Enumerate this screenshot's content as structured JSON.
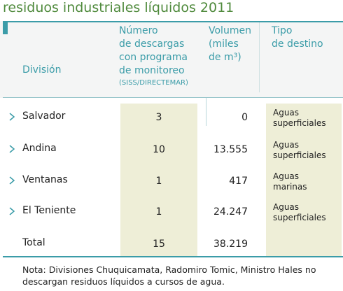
{
  "header": {
    "title": "residuos industriales líquidos 2011"
  },
  "table": {
    "columns": [
      {
        "lines": [
          "División"
        ]
      },
      {
        "lines": [
          "Número",
          "de descargas",
          "con programa",
          "de monitoreo"
        ],
        "sub": "(SISS/DIRECTEMAR)"
      },
      {
        "lines": [
          "Volumen",
          "(miles",
          "de m³)"
        ]
      },
      {
        "lines": [
          "Tipo",
          "de destino"
        ]
      }
    ],
    "rows": [
      [
        "Salvador",
        "3",
        "0",
        [
          "Aguas",
          "superficiales"
        ]
      ],
      [
        "Andina",
        "10",
        "13.555",
        [
          "Aguas",
          "superficiales"
        ]
      ],
      [
        "Ventanas",
        "1",
        "417",
        [
          "Aguas",
          "marinas"
        ]
      ],
      [
        "El Teniente",
        "1",
        "24.247",
        [
          "Aguas",
          "superficiales"
        ]
      ]
    ],
    "total": [
      "Total",
      "15",
      "38.219"
    ]
  },
  "footer": {
    "note": [
      "Nota: Divisiones Chuquicamata, Radomiro Tomic, Ministro Hales no",
      "descargan residuos líquidos a cursos de agua."
    ]
  }
}
